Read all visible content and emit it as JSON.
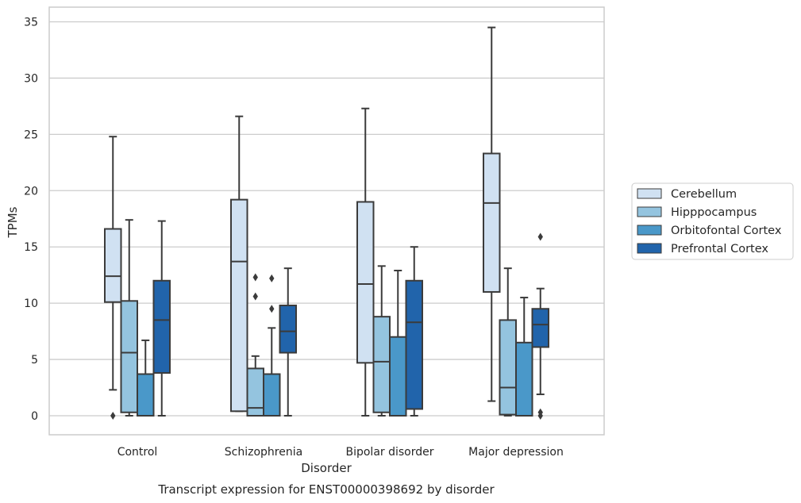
{
  "chart_data": {
    "type": "box",
    "title": "",
    "caption": "Transcript expression for ENST00000398692 by disorder",
    "xlabel": "Disorder",
    "ylabel": "TPMs",
    "ylim": [
      -1.7,
      36.3
    ],
    "yticks": [
      0,
      5,
      10,
      15,
      20,
      25,
      30,
      35
    ],
    "grid": "horizontal",
    "legend_position": "right",
    "categories": [
      "Control",
      "Schizophrenia",
      "Bipolar disorder",
      "Major depression"
    ],
    "series": [
      {
        "name": "Cerebellum",
        "color": "#d0e1f2",
        "boxes": [
          {
            "min": 2.3,
            "q1": 10.1,
            "median": 12.4,
            "q3": 16.6,
            "max": 24.8,
            "outliers": [
              0.0
            ]
          },
          {
            "min": 0.4,
            "q1": 0.4,
            "median": 13.7,
            "q3": 19.2,
            "max": 26.6,
            "outliers": []
          },
          {
            "min": 0.0,
            "q1": 4.7,
            "median": 11.7,
            "q3": 19.0,
            "max": 27.3,
            "outliers": []
          },
          {
            "min": 1.3,
            "q1": 11.0,
            "median": 18.9,
            "q3": 23.3,
            "max": 34.5,
            "outliers": []
          }
        ]
      },
      {
        "name": "Hipppocampus",
        "color": "#94c4df",
        "boxes": [
          {
            "min": 0.0,
            "q1": 0.3,
            "median": 5.6,
            "q3": 10.2,
            "max": 17.4,
            "outliers": []
          },
          {
            "min": 0.0,
            "q1": 0.0,
            "median": 0.7,
            "q3": 4.2,
            "max": 5.3,
            "outliers": [
              10.6,
              12.3
            ]
          },
          {
            "min": 0.0,
            "q1": 0.3,
            "median": 4.8,
            "q3": 8.8,
            "max": 13.3,
            "outliers": []
          },
          {
            "min": 0.0,
            "q1": 0.1,
            "median": 2.5,
            "q3": 8.5,
            "max": 13.1,
            "outliers": []
          }
        ]
      },
      {
        "name": "Orbitofontal Cortex",
        "color": "#4a98c9",
        "boxes": [
          {
            "min": 0.0,
            "q1": 0.0,
            "median": 0.0,
            "q3": 3.7,
            "max": 6.7,
            "outliers": []
          },
          {
            "min": 0.0,
            "q1": 0.0,
            "median": 0.0,
            "q3": 3.7,
            "max": 7.8,
            "outliers": [
              9.5,
              12.2
            ]
          },
          {
            "min": 0.0,
            "q1": 0.0,
            "median": 0.0,
            "q3": 7.0,
            "max": 12.9,
            "outliers": []
          },
          {
            "min": 0.0,
            "q1": 0.0,
            "median": 0.0,
            "q3": 6.5,
            "max": 10.5,
            "outliers": []
          }
        ]
      },
      {
        "name": "Prefrontal Cortex",
        "color": "#2164ab",
        "boxes": [
          {
            "min": 0.0,
            "q1": 3.8,
            "median": 8.5,
            "q3": 12.0,
            "max": 17.3,
            "outliers": []
          },
          {
            "min": 0.0,
            "q1": 5.6,
            "median": 7.5,
            "q3": 9.8,
            "max": 13.1,
            "outliers": []
          },
          {
            "min": 0.0,
            "q1": 0.6,
            "median": 8.3,
            "q3": 12.0,
            "max": 15.0,
            "outliers": []
          },
          {
            "min": 1.9,
            "q1": 6.1,
            "median": 8.1,
            "q3": 9.5,
            "max": 11.3,
            "outliers": [
              0.0,
              0.3,
              15.9
            ]
          }
        ]
      }
    ]
  }
}
